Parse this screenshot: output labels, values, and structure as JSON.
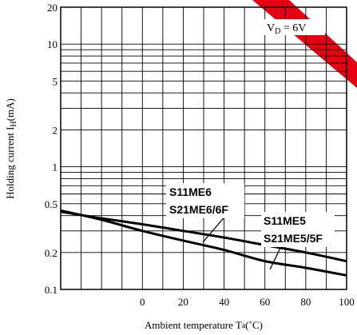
{
  "chart_data": {
    "type": "line",
    "y_scale": "log",
    "xlim": [
      -40,
      100
    ],
    "ylim": [
      0.1,
      20
    ],
    "x_ticks": [
      0,
      20,
      40,
      60,
      80,
      100
    ],
    "y_ticks": [
      0.1,
      0.2,
      0.5,
      1,
      2,
      5,
      10,
      20
    ],
    "x_tick_labels": [
      "0",
      "20",
      "40",
      "60",
      "80",
      "100"
    ],
    "y_tick_labels": [
      "0.1",
      "0.2",
      "0.5",
      "1",
      "2",
      "5",
      "10",
      "20"
    ],
    "xlabel": "Ambient temperature T",
    "xlabel_sub": "a",
    "xlabel_unit": "(˚C)",
    "ylabel": "Holding current I",
    "ylabel_sub": "H",
    "ylabel_unit": "(mA)",
    "condition": {
      "text": "V",
      "sub": "D",
      "rest": " = 6V"
    },
    "grid": true,
    "series": [
      {
        "label_lines": [
          "S11ME6",
          "S21ME6/6F"
        ],
        "x": [
          -40,
          -20,
          0,
          20,
          40,
          60,
          80,
          100
        ],
        "y": [
          0.43,
          0.38,
          0.34,
          0.3,
          0.265,
          0.23,
          0.2,
          0.17
        ],
        "color": "#000000"
      },
      {
        "label_lines": [
          "S11ME5",
          "S21ME5/5F"
        ],
        "x": [
          -40,
          -20,
          0,
          20,
          40,
          60,
          80,
          100
        ],
        "y": [
          0.44,
          0.37,
          0.3,
          0.25,
          0.21,
          0.17,
          0.15,
          0.13
        ],
        "color": "#000000"
      }
    ]
  }
}
